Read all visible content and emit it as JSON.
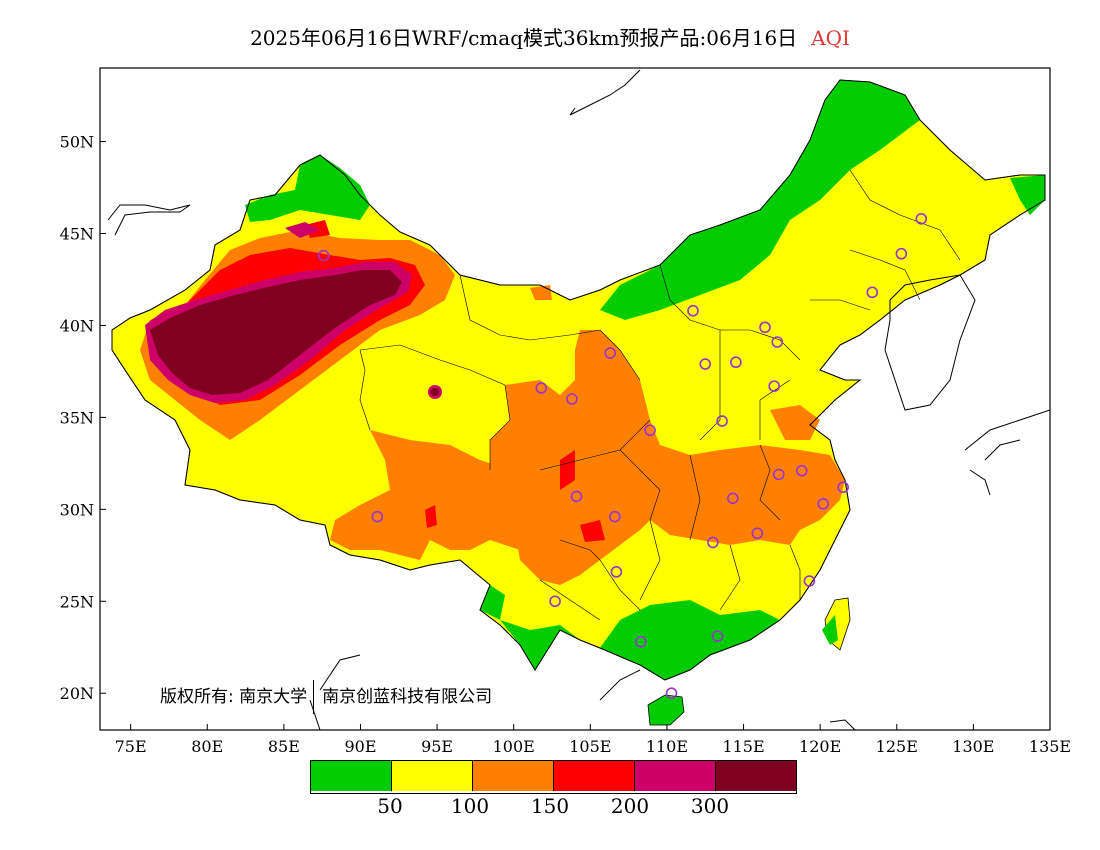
{
  "title": {
    "main": "2025年06月16日WRF/cmaq模式36km预报产品:06月16日",
    "variable": "AQI",
    "variable_color": "#e0383a"
  },
  "axes": {
    "y_ticks": [
      "50N",
      "45N",
      "40N",
      "35N",
      "30N",
      "25N",
      "20N"
    ],
    "x_ticks": [
      "75E",
      "80E",
      "85E",
      "90E",
      "95E",
      "100E",
      "105E",
      "110E",
      "115E",
      "120E",
      "125E",
      "130E",
      "135E"
    ],
    "lon_range": [
      73,
      135
    ],
    "lat_range": [
      18,
      54
    ]
  },
  "copyright": {
    "label": "版权所有:",
    "org1": "南京大学",
    "org2": "南京创蓝科技有限公司"
  },
  "legend": {
    "colors": [
      "#00cc00",
      "#ffff00",
      "#ff8000",
      "#ff0000",
      "#cc0066",
      "#800020"
    ],
    "labels": [
      "50",
      "100",
      "150",
      "200",
      "300"
    ]
  },
  "colors": {
    "good": "#00cc00",
    "moderate": "#ffff00",
    "light": "#ff8000",
    "medium": "#ff0000",
    "heavy": "#cc0066",
    "severe": "#800020",
    "station_marker": "#9933cc"
  },
  "stations": [
    {
      "lon": 87.6,
      "lat": 43.8
    },
    {
      "lon": 91.1,
      "lat": 29.6
    },
    {
      "lon": 101.8,
      "lat": 36.6
    },
    {
      "lon": 103.8,
      "lat": 36.0
    },
    {
      "lon": 106.3,
      "lat": 38.5
    },
    {
      "lon": 104.1,
      "lat": 30.7
    },
    {
      "lon": 106.6,
      "lat": 29.6
    },
    {
      "lon": 102.7,
      "lat": 25.0
    },
    {
      "lon": 106.7,
      "lat": 26.6
    },
    {
      "lon": 108.9,
      "lat": 34.3
    },
    {
      "lon": 111.7,
      "lat": 40.8
    },
    {
      "lon": 112.5,
      "lat": 37.9
    },
    {
      "lon": 114.5,
      "lat": 38.0
    },
    {
      "lon": 116.4,
      "lat": 39.9
    },
    {
      "lon": 117.2,
      "lat": 39.1
    },
    {
      "lon": 117.0,
      "lat": 36.7
    },
    {
      "lon": 113.6,
      "lat": 34.8
    },
    {
      "lon": 114.3,
      "lat": 30.6
    },
    {
      "lon": 117.3,
      "lat": 31.9
    },
    {
      "lon": 118.8,
      "lat": 32.1
    },
    {
      "lon": 121.5,
      "lat": 31.2
    },
    {
      "lon": 120.2,
      "lat": 30.3
    },
    {
      "lon": 115.9,
      "lat": 28.7
    },
    {
      "lon": 113.0,
      "lat": 28.2
    },
    {
      "lon": 119.3,
      "lat": 26.1
    },
    {
      "lon": 113.3,
      "lat": 23.1
    },
    {
      "lon": 108.3,
      "lat": 22.8
    },
    {
      "lon": 110.3,
      "lat": 20.0
    },
    {
      "lon": 123.4,
      "lat": 41.8
    },
    {
      "lon": 125.3,
      "lat": 43.9
    },
    {
      "lon": 126.6,
      "lat": 45.8
    }
  ]
}
